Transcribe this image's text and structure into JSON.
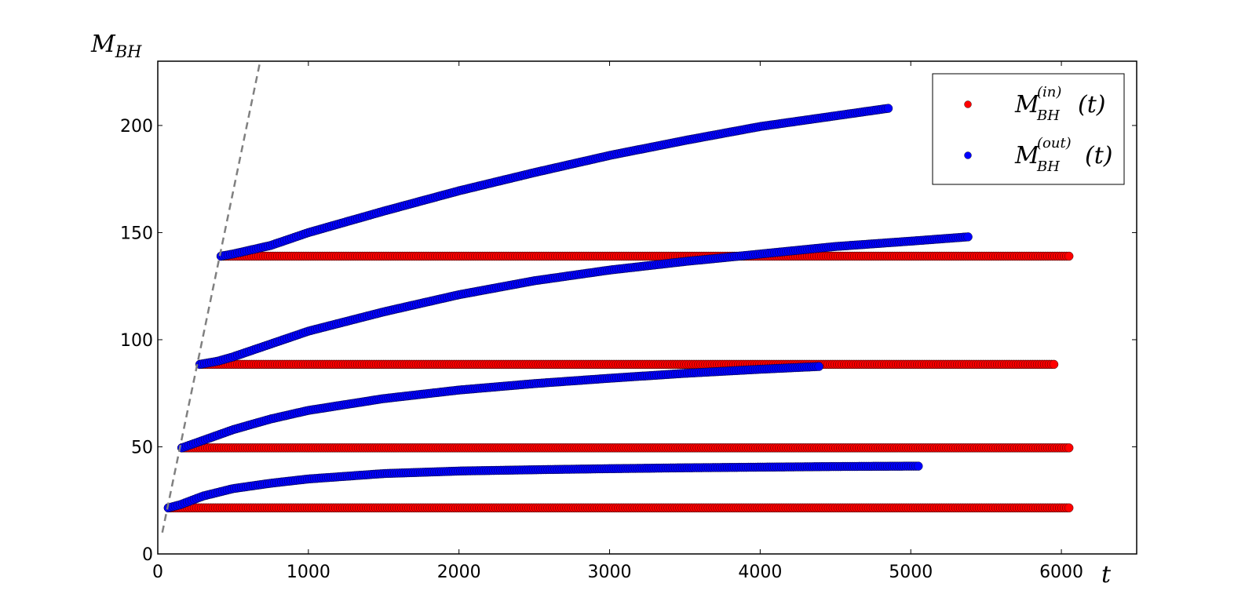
{
  "chart_data": {
    "type": "scatter",
    "title": "",
    "xlabel": "t",
    "ylabel": "M_BH",
    "xlim": [
      0,
      6500
    ],
    "ylim": [
      0,
      230
    ],
    "xticks": [
      0,
      1000,
      2000,
      3000,
      4000,
      5000,
      6000
    ],
    "yticks": [
      0,
      50,
      100,
      150,
      200
    ],
    "grid": false,
    "legend": {
      "placement": "top-right",
      "entries": [
        {
          "series": "in",
          "main": "M",
          "sub": "BH",
          "sup": "(in)",
          "arg": "(t)"
        },
        {
          "series": "out",
          "main": "M",
          "sub": "BH",
          "sup": "(out)",
          "arg": "(t)"
        }
      ]
    },
    "colors": {
      "in": "#ff0000",
      "out": "#0000ff",
      "guide": "#808080"
    },
    "guide_line": {
      "style": "dashed",
      "x": [
        30,
        680
      ],
      "y": [
        10,
        230
      ]
    },
    "series": [
      {
        "group": "in",
        "x": [
          70,
          6050
        ],
        "y": [
          21.5,
          21.5
        ]
      },
      {
        "group": "in",
        "x": [
          160,
          6050
        ],
        "y": [
          49.5,
          49.5
        ]
      },
      {
        "group": "in",
        "x": [
          280,
          5950
        ],
        "y": [
          88.5,
          88.5
        ]
      },
      {
        "group": "in",
        "x": [
          420,
          6050
        ],
        "y": [
          139,
          139
        ]
      },
      {
        "group": "out",
        "x": [
          70,
          150,
          300,
          500,
          750,
          1000,
          1500,
          2000,
          2500,
          3000,
          3500,
          4000,
          4500,
          5050
        ],
        "y": [
          21.5,
          23,
          27,
          30.5,
          33,
          35,
          37.5,
          38.7,
          39.3,
          39.8,
          40.2,
          40.5,
          40.8,
          41
        ]
      },
      {
        "group": "out",
        "x": [
          160,
          300,
          500,
          750,
          1000,
          1500,
          2000,
          2500,
          3000,
          3500,
          4000,
          4390
        ],
        "y": [
          49.5,
          53,
          58,
          63,
          67,
          72.5,
          76.5,
          79.5,
          82,
          84.3,
          86.2,
          87.5
        ]
      },
      {
        "group": "out",
        "x": [
          280,
          400,
          500,
          750,
          1000,
          1500,
          2000,
          2500,
          3000,
          3500,
          4000,
          4500,
          5000,
          5380
        ],
        "y": [
          88.5,
          90,
          92,
          98,
          104,
          113,
          121,
          127.5,
          132.5,
          136.5,
          140,
          143.5,
          146,
          148
        ]
      },
      {
        "group": "out",
        "x": [
          420,
          500,
          750,
          1000,
          1500,
          2000,
          2500,
          3000,
          3500,
          4000,
          4500,
          4850
        ],
        "y": [
          139,
          140,
          144,
          150,
          160,
          169.5,
          178,
          186,
          193,
          199.5,
          204.5,
          208
        ]
      }
    ]
  }
}
